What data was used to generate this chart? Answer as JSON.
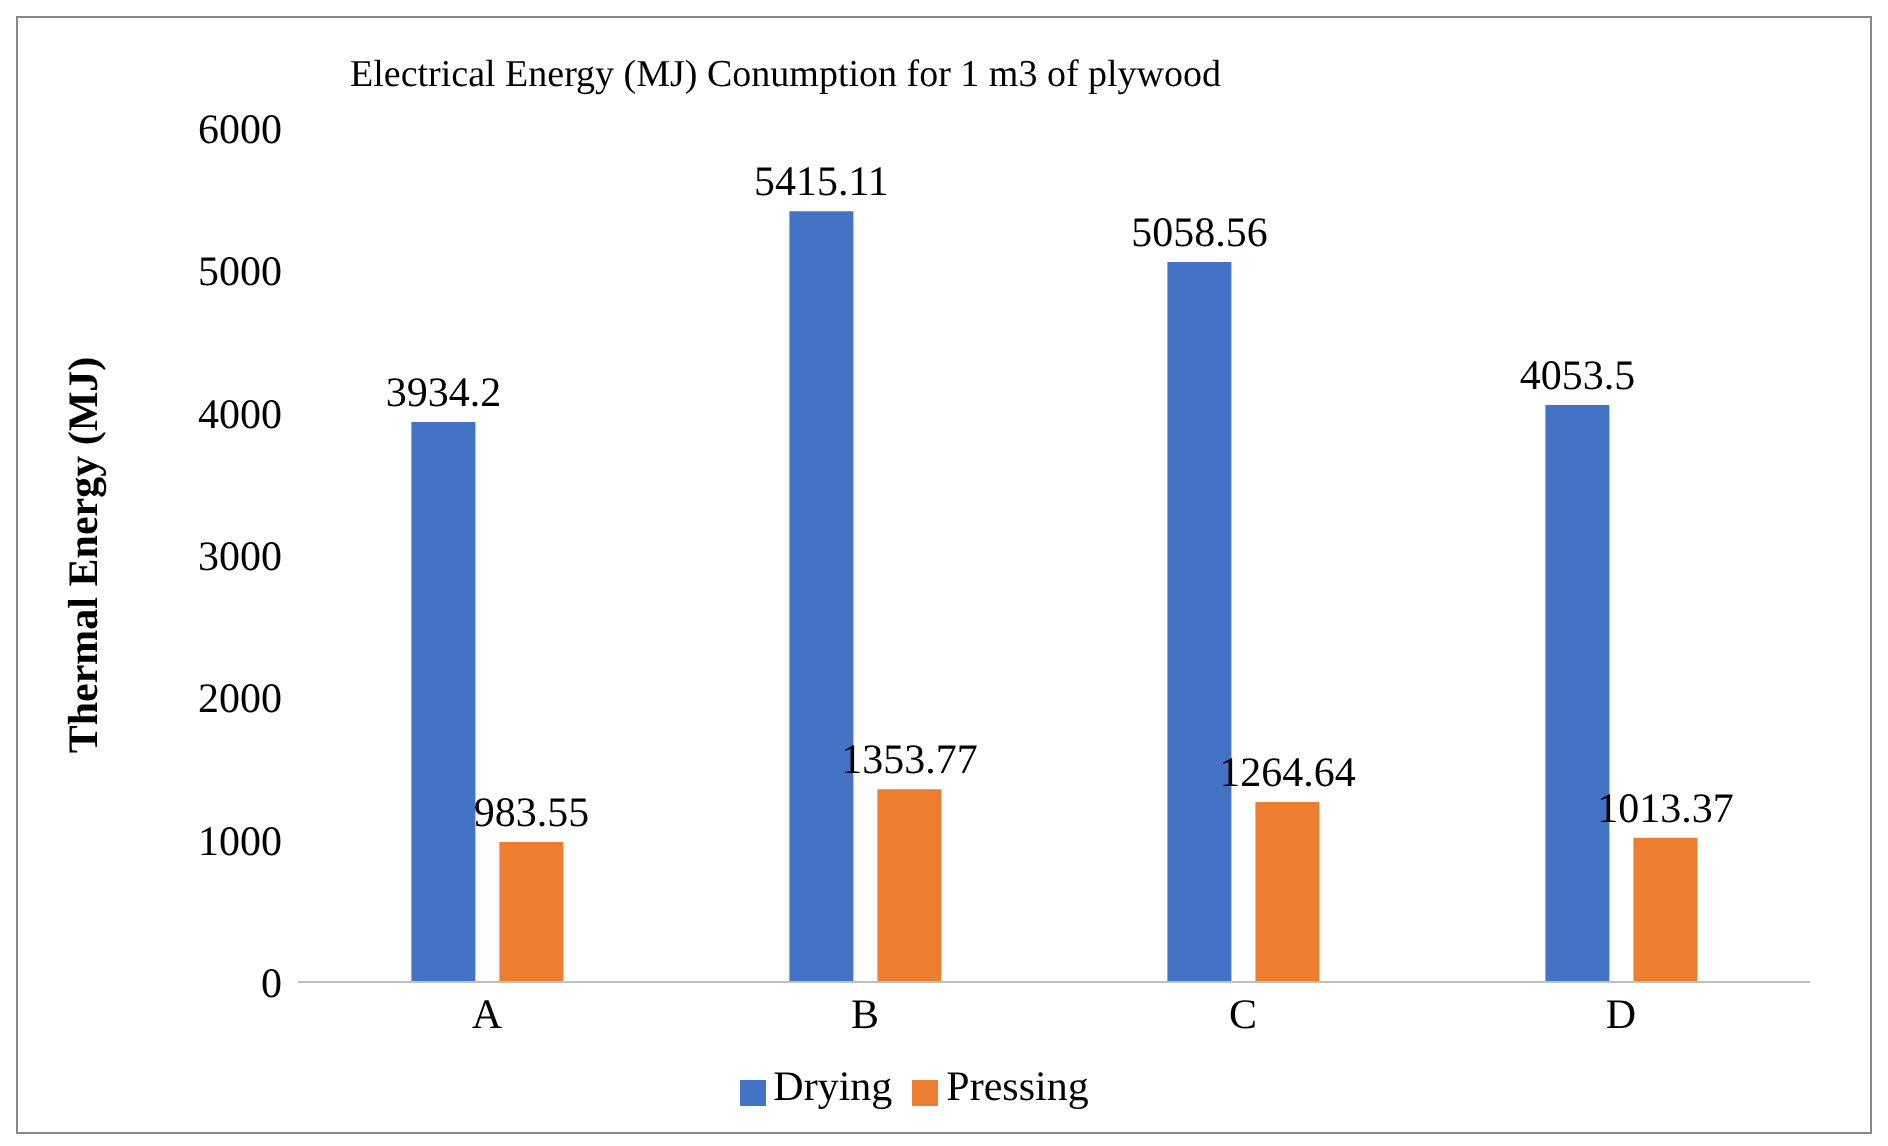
{
  "chart_data": {
    "type": "bar",
    "title": "Electrical Energy (MJ) Conumption for 1 m3 of plywood",
    "ylabel": "Thermal Energy (MJ)",
    "categories": [
      "A",
      "B",
      "C",
      "D"
    ],
    "series": [
      {
        "name": "Drying",
        "color": "#4472c4",
        "values": [
          3934.2,
          5415.11,
          5058.56,
          4053.5
        ]
      },
      {
        "name": "Pressing",
        "color": "#ed7d31",
        "values": [
          983.55,
          1353.77,
          1264.64,
          1013.37
        ]
      }
    ],
    "ylim": [
      0,
      6000
    ],
    "yticks": [
      0,
      1000,
      2000,
      3000,
      4000,
      5000,
      6000
    ],
    "grid": false,
    "legend": "bottom",
    "data_labels": true
  }
}
